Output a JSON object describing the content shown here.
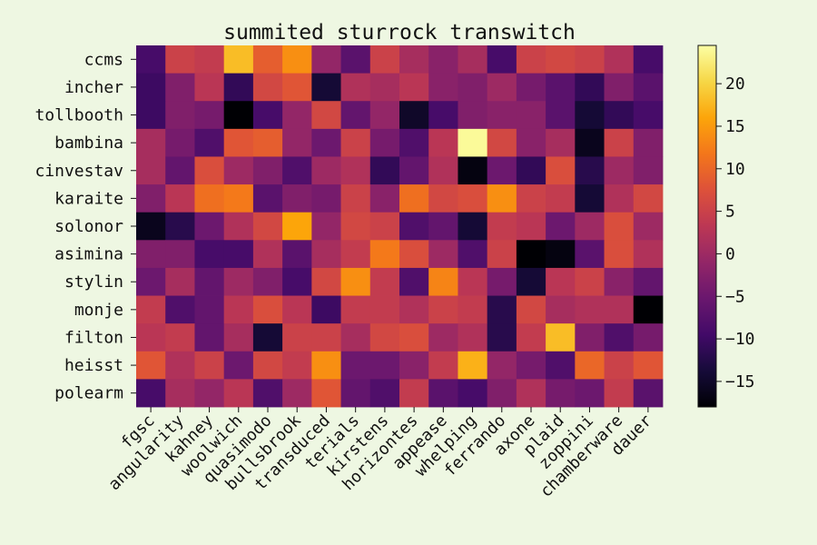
{
  "chart_data": {
    "type": "heatmap",
    "title": "summited sturrock transwitch",
    "colormap": "inferno",
    "rows": [
      "ccms",
      "incher",
      "tollbooth",
      "bambina",
      "cinvestav",
      "karaite",
      "solonor",
      "asimina",
      "stylin",
      "monje",
      "filton",
      "heisst",
      "polearm"
    ],
    "columns": [
      "fgsc",
      "angularity",
      "kahney",
      "woolwich",
      "quasimodo",
      "bullsbrook",
      "transduced",
      "terials",
      "kirstens",
      "horizontes",
      "appease",
      "whelping",
      "ferrando",
      "axone",
      "plaid",
      "zoppini",
      "chamberware",
      "dauer"
    ],
    "values": [
      [
        -9,
        5,
        4,
        18,
        9,
        14,
        -1,
        -7,
        5,
        1,
        -2,
        1,
        -9,
        5,
        6,
        5,
        2,
        -9
      ],
      [
        -10,
        -3,
        3,
        -11,
        6,
        8,
        -14,
        2,
        1,
        3,
        -2,
        -3,
        0,
        -4,
        -7,
        -11,
        -3,
        -7
      ],
      [
        -10,
        -3,
        -4,
        -18,
        -9,
        -1,
        6,
        -6,
        -1,
        -15,
        -9,
        -3,
        -2,
        -2,
        -7,
        -14,
        -11,
        -9
      ],
      [
        1,
        -4,
        -8,
        8,
        9,
        -1,
        -5,
        5,
        -4,
        -8,
        3,
        24,
        6,
        -2,
        1,
        -16,
        5,
        -3
      ],
      [
        1,
        -6,
        7,
        0,
        -3,
        -8,
        0,
        2,
        -11,
        -6,
        2,
        -17,
        -5,
        -11,
        7,
        -12,
        0,
        -3
      ],
      [
        -3,
        3,
        11,
        12,
        -7,
        -3,
        -4,
        5,
        -2,
        11,
        6,
        7,
        14,
        5,
        4,
        -14,
        2,
        6
      ],
      [
        -16,
        -12,
        -5,
        2,
        6,
        16,
        -1,
        6,
        5,
        -8,
        -6,
        -14,
        4,
        3,
        -5,
        0,
        7,
        0
      ],
      [
        -3,
        -3,
        -9,
        -9,
        2,
        -7,
        1,
        4,
        12,
        7,
        0,
        -8,
        5,
        -18,
        -17,
        -7,
        7,
        2
      ],
      [
        -5,
        1,
        -6,
        0,
        -3,
        -9,
        6,
        14,
        4,
        -8,
        13,
        3,
        -4,
        -14,
        3,
        5,
        -2,
        -6
      ],
      [
        4,
        -8,
        -6,
        3,
        7,
        3,
        -10,
        4,
        4,
        2,
        5,
        4,
        -12,
        6,
        1,
        2,
        2,
        -18
      ],
      [
        3,
        4,
        -6,
        1,
        -14,
        5,
        5,
        1,
        6,
        7,
        0,
        2,
        -12,
        4,
        18,
        -3,
        -8,
        -4
      ],
      [
        8,
        2,
        5,
        -5,
        6,
        4,
        14,
        -5,
        -5,
        -2,
        4,
        17,
        -1,
        -4,
        -8,
        10,
        5,
        8
      ],
      [
        -9,
        1,
        -1,
        3,
        -8,
        0,
        8,
        -6,
        -8,
        4,
        -7,
        -9,
        -3,
        2,
        -4,
        -5,
        4,
        -7
      ]
    ],
    "colorbar": {
      "min": -18,
      "max": 24.5,
      "ticks": [
        -15,
        -10,
        -5,
        0,
        5,
        10,
        15,
        20
      ],
      "tick_labels": [
        "−15",
        "−10",
        "−5",
        "0",
        "5",
        "10",
        "15",
        "20"
      ]
    }
  }
}
